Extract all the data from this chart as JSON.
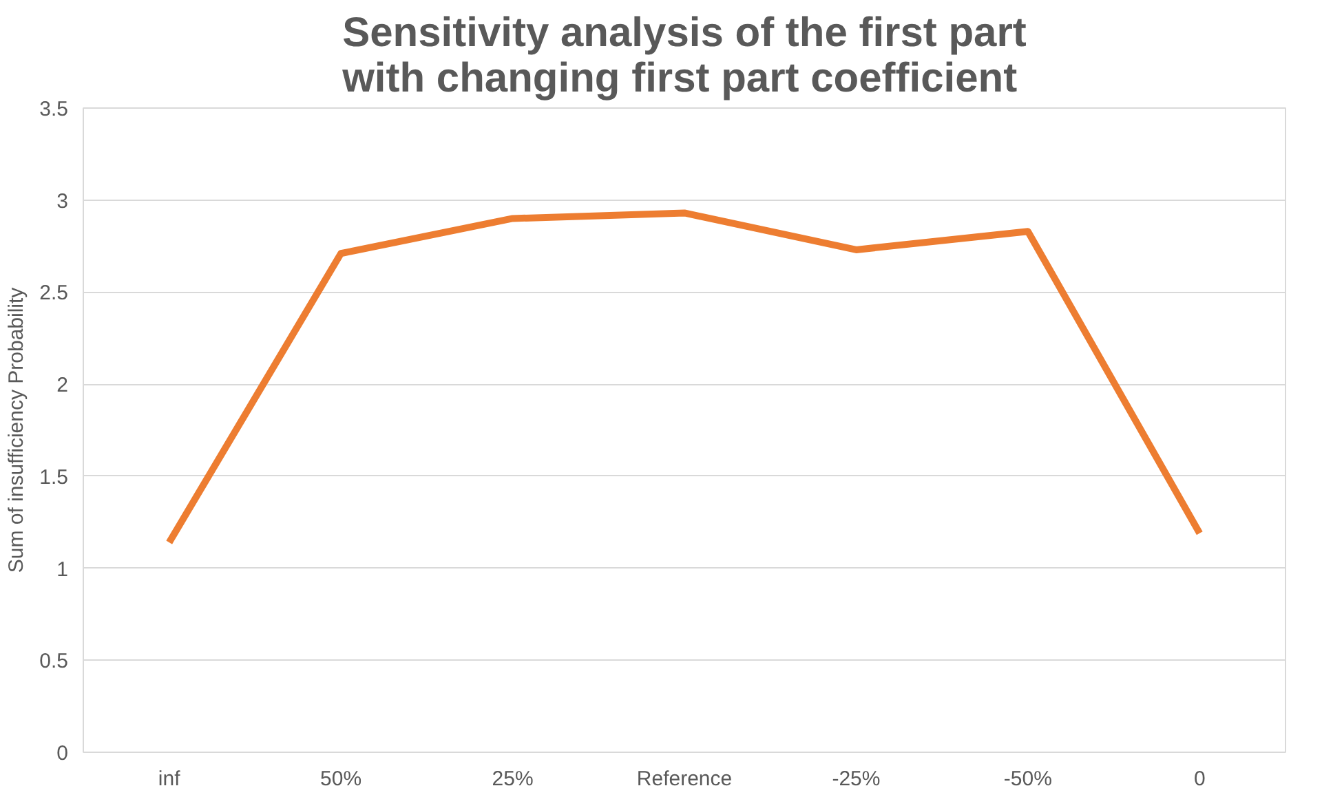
{
  "chart_data": {
    "type": "line",
    "title": "Sensitivity analysis of the first part\nwith changing first part coefficient",
    "ylabel": "Sum of insufficiency Probability",
    "categories": [
      "inf",
      "50%",
      "25%",
      "Reference",
      "-25%",
      "-50%",
      "0"
    ],
    "series": [
      {
        "color": "#ed7d31",
        "values": [
          1.14,
          2.71,
          2.9,
          2.93,
          2.73,
          2.83,
          1.19
        ]
      }
    ],
    "ylim": [
      0,
      3.5
    ],
    "yticks": [
      0,
      0.5,
      1,
      1.5,
      2,
      2.5,
      3,
      3.5
    ],
    "grid": "y",
    "marker": "none",
    "line_style": "solid"
  }
}
